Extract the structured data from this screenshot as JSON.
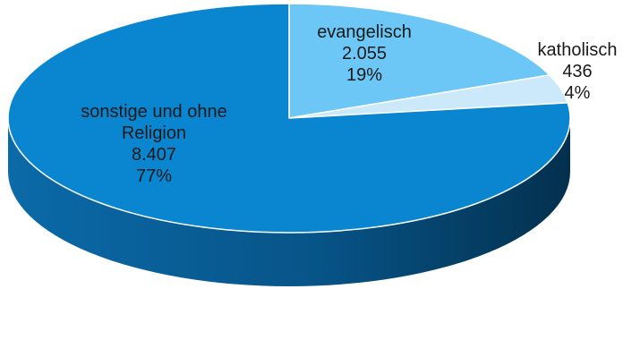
{
  "chart_data": {
    "type": "pie",
    "style": "3d",
    "categories": [
      "evangelisch",
      "katholisch",
      "sonstige und ohne Religion"
    ],
    "values": [
      2055,
      436,
      8407
    ],
    "value_labels": [
      "2.055",
      "436",
      "8.407"
    ],
    "percent_labels": [
      "19%",
      "4%",
      "77%"
    ],
    "label_lines": [
      [
        "evangelisch"
      ],
      [
        "katholisch"
      ],
      [
        "sonstige und ohne",
        "Religion"
      ]
    ],
    "colors": [
      "#6cc7f6",
      "#cbe9fb",
      "#0a85cf"
    ],
    "side_colors": [
      "#3d9ccc",
      "#9cc6de",
      "#075a8f"
    ],
    "start_angle_deg": -90,
    "direction": "clockwise"
  }
}
